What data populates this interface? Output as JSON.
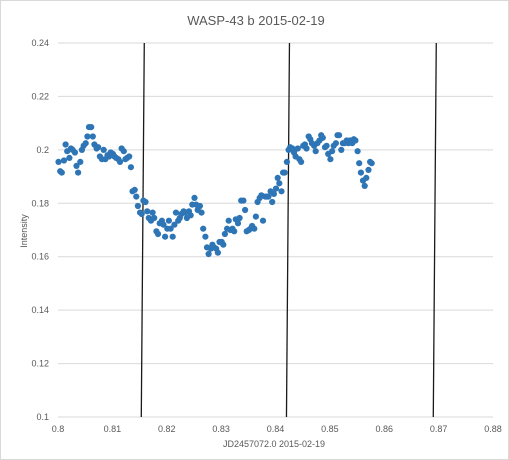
{
  "chart_data": {
    "type": "scatter",
    "title": "WASP-43 b  2015-02-19",
    "xlabel": "JD2457072.0  2015-02-19",
    "ylabel": "Intensity",
    "xlim": [
      0.8,
      0.88
    ],
    "ylim": [
      0.1,
      0.24
    ],
    "x_ticks": [
      "0.8",
      "0.81",
      "0.82",
      "0.83",
      "0.84",
      "0.85",
      "0.86",
      "0.87",
      "0.88"
    ],
    "y_ticks": [
      "0.1",
      "0.12",
      "0.14",
      "0.16",
      "0.18",
      "0.2",
      "0.22",
      "0.24"
    ],
    "grid": "horizontal",
    "marker_color": "#2e75b6",
    "vertical_markers": [
      {
        "x": 0.8155,
        "y_top": 0.24,
        "y_bottom": 0.1
      },
      {
        "x": 0.8422,
        "y_top": 0.24,
        "y_bottom": 0.1
      },
      {
        "x": 0.8692,
        "y_top": 0.24,
        "y_bottom": 0.1
      }
    ],
    "series": [
      {
        "points": [
          [
            0.8001,
            0.1955
          ],
          [
            0.8004,
            0.192
          ],
          [
            0.8007,
            0.1915
          ],
          [
            0.8011,
            0.196
          ],
          [
            0.8014,
            0.202
          ],
          [
            0.8017,
            0.1995
          ],
          [
            0.8021,
            0.197
          ],
          [
            0.8024,
            0.2005
          ],
          [
            0.8027,
            0.2
          ],
          [
            0.8031,
            0.199
          ],
          [
            0.8034,
            0.194
          ],
          [
            0.8037,
            0.1915
          ],
          [
            0.8041,
            0.1955
          ],
          [
            0.8044,
            0.2
          ],
          [
            0.8047,
            0.2015
          ],
          [
            0.8051,
            0.2025
          ],
          [
            0.8054,
            0.205
          ],
          [
            0.8057,
            0.2085
          ],
          [
            0.8061,
            0.2085
          ],
          [
            0.8064,
            0.205
          ],
          [
            0.8067,
            0.202
          ],
          [
            0.8071,
            0.2005
          ],
          [
            0.8074,
            0.201
          ],
          [
            0.8077,
            0.1975
          ],
          [
            0.8081,
            0.1965
          ],
          [
            0.8084,
            0.2
          ],
          [
            0.8087,
            0.1965
          ],
          [
            0.8091,
            0.198
          ],
          [
            0.8094,
            0.1975
          ],
          [
            0.8097,
            0.199
          ],
          [
            0.8101,
            0.1985
          ],
          [
            0.8104,
            0.1975
          ],
          [
            0.8107,
            0.197
          ],
          [
            0.8111,
            0.1965
          ],
          [
            0.8114,
            0.1955
          ],
          [
            0.8117,
            0.2005
          ],
          [
            0.8121,
            0.1995
          ],
          [
            0.8124,
            0.1965
          ],
          [
            0.8127,
            0.197
          ],
          [
            0.8131,
            0.1975
          ],
          [
            0.8134,
            0.1935
          ],
          [
            0.8137,
            0.1845
          ],
          [
            0.8141,
            0.185
          ],
          [
            0.8144,
            0.1825
          ],
          [
            0.8147,
            0.179
          ],
          [
            0.8151,
            0.1765
          ],
          [
            0.8154,
            0.176
          ],
          [
            0.8157,
            0.181
          ],
          [
            0.8161,
            0.1805
          ],
          [
            0.8164,
            0.177
          ],
          [
            0.8167,
            0.1745
          ],
          [
            0.8171,
            0.1735
          ],
          [
            0.8174,
            0.1765
          ],
          [
            0.8177,
            0.1745
          ],
          [
            0.8181,
            0.1695
          ],
          [
            0.8184,
            0.1685
          ],
          [
            0.8187,
            0.1725
          ],
          [
            0.8191,
            0.1735
          ],
          [
            0.8194,
            0.172
          ],
          [
            0.8197,
            0.1675
          ],
          [
            0.8201,
            0.1705
          ],
          [
            0.8204,
            0.1735
          ],
          [
            0.8207,
            0.1705
          ],
          [
            0.8211,
            0.1675
          ],
          [
            0.8214,
            0.172
          ],
          [
            0.8217,
            0.1765
          ],
          [
            0.8221,
            0.1735
          ],
          [
            0.8224,
            0.1745
          ],
          [
            0.8227,
            0.176
          ],
          [
            0.8231,
            0.177
          ],
          [
            0.8234,
            0.1765
          ],
          [
            0.8237,
            0.1745
          ],
          [
            0.8241,
            0.177
          ],
          [
            0.8244,
            0.1755
          ],
          [
            0.8247,
            0.1795
          ],
          [
            0.8251,
            0.182
          ],
          [
            0.8254,
            0.1795
          ],
          [
            0.8257,
            0.1775
          ],
          [
            0.8261,
            0.179
          ],
          [
            0.8264,
            0.1765
          ],
          [
            0.8267,
            0.1705
          ],
          [
            0.8271,
            0.1675
          ],
          [
            0.8274,
            0.1635
          ],
          [
            0.8277,
            0.161
          ],
          [
            0.8281,
            0.163
          ],
          [
            0.8284,
            0.1645
          ],
          [
            0.8287,
            0.1635
          ],
          [
            0.8291,
            0.163
          ],
          [
            0.8294,
            0.1615
          ],
          [
            0.8297,
            0.1655
          ],
          [
            0.8301,
            0.1655
          ],
          [
            0.8304,
            0.1645
          ],
          [
            0.8307,
            0.1685
          ],
          [
            0.8311,
            0.1705
          ],
          [
            0.8314,
            0.1735
          ],
          [
            0.8317,
            0.17
          ],
          [
            0.8321,
            0.1705
          ],
          [
            0.8324,
            0.1695
          ],
          [
            0.8327,
            0.174
          ],
          [
            0.8331,
            0.1725
          ],
          [
            0.8334,
            0.1745
          ],
          [
            0.8337,
            0.181
          ],
          [
            0.8341,
            0.181
          ],
          [
            0.8344,
            0.1775
          ],
          [
            0.8347,
            0.1695
          ],
          [
            0.8351,
            0.17
          ],
          [
            0.8354,
            0.1705
          ],
          [
            0.8357,
            0.1715
          ],
          [
            0.8361,
            0.1705
          ],
          [
            0.8364,
            0.175
          ],
          [
            0.8367,
            0.1805
          ],
          [
            0.8371,
            0.182
          ],
          [
            0.8374,
            0.183
          ],
          [
            0.8377,
            0.1735
          ],
          [
            0.8381,
            0.1825
          ],
          [
            0.8384,
            0.1825
          ],
          [
            0.8387,
            0.1825
          ],
          [
            0.8391,
            0.1845
          ],
          [
            0.8394,
            0.1805
          ],
          [
            0.8397,
            0.1835
          ],
          [
            0.8401,
            0.1855
          ],
          [
            0.8404,
            0.1895
          ],
          [
            0.8407,
            0.1875
          ],
          [
            0.8411,
            0.1845
          ],
          [
            0.8414,
            0.1915
          ],
          [
            0.8417,
            0.1915
          ],
          [
            0.8421,
            0.1955
          ],
          [
            0.8424,
            0.2
          ],
          [
            0.8427,
            0.201
          ],
          [
            0.8431,
            0.2005
          ],
          [
            0.8434,
            0.199
          ],
          [
            0.8437,
            0.1975
          ],
          [
            0.8441,
            0.2005
          ],
          [
            0.8444,
            0.1965
          ],
          [
            0.8447,
            0.1955
          ],
          [
            0.8451,
            0.2015
          ],
          [
            0.8454,
            0.202
          ],
          [
            0.8457,
            0.2005
          ],
          [
            0.8461,
            0.205
          ],
          [
            0.8464,
            0.204
          ],
          [
            0.8467,
            0.2025
          ],
          [
            0.8471,
            0.2015
          ],
          [
            0.8474,
            0.1995
          ],
          [
            0.8477,
            0.2025
          ],
          [
            0.8481,
            0.2035
          ],
          [
            0.8484,
            0.2055
          ],
          [
            0.8487,
            0.2045
          ],
          [
            0.8491,
            0.201
          ],
          [
            0.8494,
            0.2015
          ],
          [
            0.8497,
            0.1985
          ],
          [
            0.8501,
            0.1965
          ],
          [
            0.8504,
            0.1995
          ],
          [
            0.8507,
            0.2015
          ],
          [
            0.8511,
            0.2025
          ],
          [
            0.8514,
            0.2055
          ],
          [
            0.8517,
            0.2055
          ],
          [
            0.8521,
            0.2
          ],
          [
            0.8524,
            0.2025
          ],
          [
            0.8527,
            0.2025
          ],
          [
            0.8531,
            0.2035
          ],
          [
            0.8534,
            0.2025
          ],
          [
            0.8537,
            0.2035
          ],
          [
            0.8541,
            0.2025
          ],
          [
            0.8544,
            0.204
          ],
          [
            0.8547,
            0.2035
          ],
          [
            0.8551,
            0.1995
          ],
          [
            0.8554,
            0.195
          ],
          [
            0.8557,
            0.1915
          ],
          [
            0.8561,
            0.1885
          ],
          [
            0.8564,
            0.1865
          ],
          [
            0.8567,
            0.1895
          ],
          [
            0.8571,
            0.1925
          ],
          [
            0.8574,
            0.1955
          ],
          [
            0.8577,
            0.195
          ]
        ]
      }
    ]
  }
}
